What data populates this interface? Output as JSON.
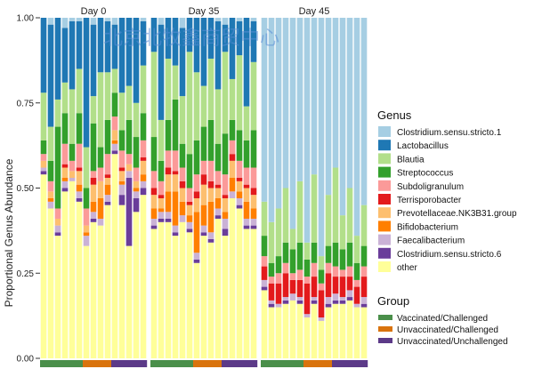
{
  "chart_data": {
    "type": "bar",
    "stacked": true,
    "ylabel": "Proportional Genus Abundance",
    "ylim": [
      0,
      1
    ],
    "yticks": [
      "0.00",
      "0.25",
      "0.50",
      "0.75",
      "1.00"
    ],
    "ytick_values": [
      0,
      0.25,
      0.5,
      0.75,
      1.0
    ],
    "facets": [
      "Day 0",
      "Day 35",
      "Day 45"
    ],
    "genus_legend_title": "Genus",
    "group_legend_title": "Group",
    "genera": [
      {
        "name": "Clostridium.sensu.stricto.1",
        "color": "#a6cee3"
      },
      {
        "name": "Lactobacillus",
        "color": "#1f78b4"
      },
      {
        "name": "Blautia",
        "color": "#b2df8a"
      },
      {
        "name": "Streptococcus",
        "color": "#33a02c"
      },
      {
        "name": "Subdoligranulum",
        "color": "#fb9a99"
      },
      {
        "name": "Terrisporobacter",
        "color": "#e31a1c"
      },
      {
        "name": "Prevotellaceae.NK3B31.group",
        "color": "#fdbf6f"
      },
      {
        "name": "Bifidobacterium",
        "color": "#ff7f00"
      },
      {
        "name": "Faecalibacterium",
        "color": "#cab2d6"
      },
      {
        "name": "Clostridium.sensu.stricto.6",
        "color": "#6a3d9a"
      },
      {
        "name": "other",
        "color": "#ffff99"
      }
    ],
    "groups": [
      {
        "name": "Vaccinated/Challenged",
        "color": "#4a8f4a"
      },
      {
        "name": "Unvaccinated/Challenged",
        "color": "#d9730d"
      },
      {
        "name": "Unvaccinated/Unchallenged",
        "color": "#5c3a88"
      }
    ],
    "facet_groups": [
      [
        "Vaccinated/Challenged",
        "Vaccinated/Challenged",
        "Vaccinated/Challenged",
        "Vaccinated/Challenged",
        "Vaccinated/Challenged",
        "Vaccinated/Challenged",
        "Unvaccinated/Challenged",
        "Unvaccinated/Challenged",
        "Unvaccinated/Challenged",
        "Unvaccinated/Challenged",
        "Unvaccinated/Unchallenged",
        "Unvaccinated/Unchallenged",
        "Unvaccinated/Unchallenged",
        "Unvaccinated/Unchallenged",
        "Unvaccinated/Unchallenged"
      ],
      [
        "Vaccinated/Challenged",
        "Vaccinated/Challenged",
        "Vaccinated/Challenged",
        "Vaccinated/Challenged",
        "Vaccinated/Challenged",
        "Vaccinated/Challenged",
        "Unvaccinated/Challenged",
        "Unvaccinated/Challenged",
        "Unvaccinated/Challenged",
        "Unvaccinated/Challenged",
        "Unvaccinated/Unchallenged",
        "Unvaccinated/Unchallenged",
        "Unvaccinated/Unchallenged",
        "Unvaccinated/Unchallenged",
        "Unvaccinated/Unchallenged"
      ],
      [
        "Vaccinated/Challenged",
        "Vaccinated/Challenged",
        "Vaccinated/Challenged",
        "Vaccinated/Challenged",
        "Vaccinated/Challenged",
        "Vaccinated/Challenged",
        "Unvaccinated/Challenged",
        "Unvaccinated/Challenged",
        "Unvaccinated/Challenged",
        "Unvaccinated/Challenged",
        "Unvaccinated/Unchallenged",
        "Unvaccinated/Unchallenged",
        "Unvaccinated/Unchallenged",
        "Unvaccinated/Unchallenged",
        "Unvaccinated/Unchallenged"
      ]
    ],
    "samples": [
      [
        [
          0.0,
          0.22,
          0.14,
          0.04,
          0.02,
          0.0,
          0.02,
          0.0,
          0.01,
          0.01,
          0.54
        ],
        [
          0.02,
          0.3,
          0.1,
          0.06,
          0.03,
          0.0,
          0.02,
          0.01,
          0.02,
          0.0,
          0.44
        ],
        [
          0.0,
          0.24,
          0.08,
          0.24,
          0.03,
          0.0,
          0.02,
          0.0,
          0.02,
          0.01,
          0.36
        ],
        [
          0.03,
          0.16,
          0.09,
          0.09,
          0.06,
          0.01,
          0.03,
          0.01,
          0.02,
          0.01,
          0.49
        ],
        [
          0.01,
          0.2,
          0.16,
          0.05,
          0.03,
          0.0,
          0.02,
          0.0,
          0.01,
          0.0,
          0.52
        ],
        [
          0.01,
          0.14,
          0.13,
          0.09,
          0.07,
          0.01,
          0.04,
          0.02,
          0.02,
          0.01,
          0.46
        ],
        [
          0.0,
          0.38,
          0.12,
          0.06,
          0.05,
          0.0,
          0.02,
          0.01,
          0.03,
          0.0,
          0.33
        ],
        [
          0.02,
          0.21,
          0.08,
          0.14,
          0.02,
          0.02,
          0.05,
          0.03,
          0.02,
          0.01,
          0.4
        ],
        [
          0.0,
          0.16,
          0.22,
          0.06,
          0.04,
          0.0,
          0.05,
          0.06,
          0.02,
          0.0,
          0.39
        ],
        [
          0.01,
          0.15,
          0.14,
          0.1,
          0.06,
          0.01,
          0.02,
          0.03,
          0.02,
          0.01,
          0.45
        ],
        [
          0.02,
          0.13,
          0.07,
          0.07,
          0.04,
          0.0,
          0.03,
          0.01,
          0.02,
          0.01,
          0.6
        ],
        [
          0.0,
          0.22,
          0.11,
          0.06,
          0.05,
          0.01,
          0.03,
          0.01,
          0.03,
          0.03,
          0.45
        ],
        [
          0.0,
          0.2,
          0.1,
          0.1,
          0.03,
          0.0,
          0.02,
          0.0,
          0.02,
          0.2,
          0.33
        ],
        [
          0.0,
          0.25,
          0.1,
          0.09,
          0.04,
          0.0,
          0.02,
          0.01,
          0.02,
          0.04,
          0.43
        ],
        [
          0.01,
          0.13,
          0.14,
          0.08,
          0.05,
          0.01,
          0.04,
          0.02,
          0.02,
          0.02,
          0.48
        ]
      ],
      [
        [
          0.0,
          0.1,
          0.25,
          0.1,
          0.05,
          0.02,
          0.04,
          0.03,
          0.02,
          0.01,
          0.38
        ],
        [
          0.02,
          0.28,
          0.12,
          0.06,
          0.04,
          0.01,
          0.03,
          0.01,
          0.02,
          0.01,
          0.4
        ],
        [
          0.0,
          0.12,
          0.18,
          0.09,
          0.05,
          0.02,
          0.05,
          0.06,
          0.02,
          0.01,
          0.4
        ],
        [
          0.0,
          0.14,
          0.1,
          0.15,
          0.06,
          0.01,
          0.05,
          0.1,
          0.02,
          0.01,
          0.36
        ],
        [
          0.03,
          0.2,
          0.14,
          0.07,
          0.04,
          0.02,
          0.04,
          0.04,
          0.02,
          0.0,
          0.4
        ],
        [
          0.0,
          0.1,
          0.3,
          0.1,
          0.04,
          0.01,
          0.03,
          0.02,
          0.02,
          0.01,
          0.37
        ],
        [
          0.0,
          0.16,
          0.2,
          0.1,
          0.05,
          0.02,
          0.04,
          0.12,
          0.02,
          0.01,
          0.28
        ],
        [
          0.0,
          0.2,
          0.12,
          0.1,
          0.04,
          0.03,
          0.06,
          0.06,
          0.02,
          0.01,
          0.36
        ],
        [
          0.0,
          0.12,
          0.18,
          0.12,
          0.06,
          0.02,
          0.04,
          0.09,
          0.02,
          0.01,
          0.34
        ],
        [
          0.01,
          0.2,
          0.16,
          0.08,
          0.04,
          0.01,
          0.03,
          0.03,
          0.02,
          0.01,
          0.41
        ],
        [
          0.02,
          0.08,
          0.24,
          0.12,
          0.06,
          0.01,
          0.04,
          0.02,
          0.03,
          0.02,
          0.36
        ],
        [
          0.0,
          0.18,
          0.12,
          0.06,
          0.04,
          0.02,
          0.05,
          0.04,
          0.02,
          0.0,
          0.47
        ],
        [
          0.01,
          0.1,
          0.22,
          0.09,
          0.05,
          0.01,
          0.03,
          0.02,
          0.02,
          0.01,
          0.44
        ],
        [
          0.0,
          0.26,
          0.1,
          0.08,
          0.05,
          0.01,
          0.04,
          0.05,
          0.02,
          0.01,
          0.38
        ],
        [
          0.01,
          0.12,
          0.2,
          0.11,
          0.06,
          0.02,
          0.04,
          0.03,
          0.02,
          0.01,
          0.38
        ]
      ],
      [
        [
          0.54,
          0.0,
          0.1,
          0.06,
          0.03,
          0.04,
          0.0,
          0.0,
          0.02,
          0.01,
          0.2
        ],
        [
          0.6,
          0.0,
          0.12,
          0.04,
          0.02,
          0.05,
          0.0,
          0.0,
          0.01,
          0.01,
          0.15
        ],
        [
          0.56,
          0.0,
          0.14,
          0.05,
          0.03,
          0.06,
          0.0,
          0.0,
          0.01,
          0.0,
          0.15
        ],
        [
          0.5,
          0.0,
          0.16,
          0.06,
          0.03,
          0.07,
          0.0,
          0.0,
          0.01,
          0.01,
          0.16
        ],
        [
          0.62,
          0.0,
          0.06,
          0.07,
          0.02,
          0.04,
          0.0,
          0.0,
          0.02,
          0.0,
          0.17
        ],
        [
          0.48,
          0.0,
          0.18,
          0.08,
          0.03,
          0.05,
          0.0,
          0.0,
          0.01,
          0.01,
          0.16
        ],
        [
          0.66,
          0.0,
          0.05,
          0.05,
          0.02,
          0.09,
          0.0,
          0.0,
          0.01,
          0.0,
          0.12
        ],
        [
          0.46,
          0.0,
          0.2,
          0.06,
          0.04,
          0.06,
          0.0,
          0.0,
          0.01,
          0.01,
          0.16
        ],
        [
          0.7,
          0.0,
          0.04,
          0.04,
          0.02,
          0.08,
          0.0,
          0.0,
          0.01,
          0.0,
          0.11
        ],
        [
          0.52,
          0.0,
          0.15,
          0.05,
          0.03,
          0.07,
          0.0,
          0.0,
          0.02,
          0.01,
          0.15
        ],
        [
          0.44,
          0.0,
          0.22,
          0.07,
          0.03,
          0.05,
          0.0,
          0.0,
          0.02,
          0.01,
          0.16
        ],
        [
          0.58,
          0.0,
          0.1,
          0.06,
          0.02,
          0.06,
          0.0,
          0.0,
          0.01,
          0.01,
          0.16
        ],
        [
          0.5,
          0.0,
          0.16,
          0.07,
          0.03,
          0.04,
          0.0,
          0.0,
          0.02,
          0.01,
          0.17
        ],
        [
          0.64,
          0.0,
          0.08,
          0.05,
          0.02,
          0.05,
          0.0,
          0.0,
          0.01,
          0.0,
          0.15
        ],
        [
          0.55,
          0.0,
          0.12,
          0.06,
          0.03,
          0.06,
          0.0,
          0.0,
          0.02,
          0.01,
          0.15
        ]
      ]
    ],
    "grid": false,
    "legend_position": "right"
  },
  "watermark": {
    "text": "北京北牧鑫商贸中心"
  }
}
